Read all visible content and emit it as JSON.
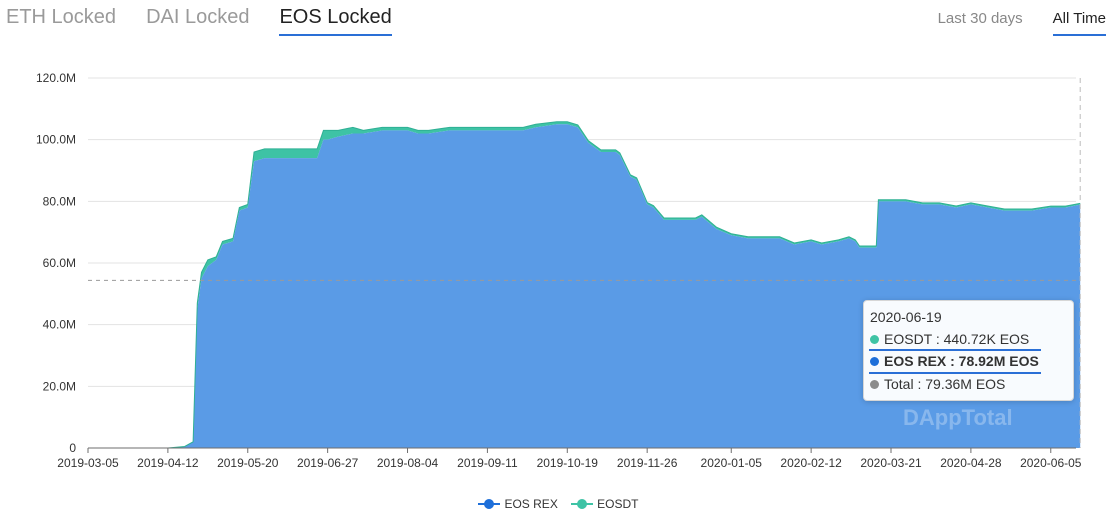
{
  "tabs": [
    {
      "label": "ETH Locked",
      "active": false
    },
    {
      "label": "DAI Locked",
      "active": false
    },
    {
      "label": "EOS Locked",
      "active": true
    }
  ],
  "ranges": [
    {
      "label": "Last 30 days",
      "active": false
    },
    {
      "label": "All Time",
      "active": true
    }
  ],
  "colors": {
    "eos_rex": "#5a9be6",
    "eosdt": "#3ec3a5",
    "total": "#8c8c8c",
    "accent": "#2a6fd6",
    "dot_rex": "#1e6fd9"
  },
  "tooltip": {
    "date": "2020-06-19",
    "eosdt": "EOSDT : 440.72K EOS",
    "eos_rex": "EOS REX : 78.92M EOS",
    "total": "Total : 79.36M EOS"
  },
  "watermark": "DAppTotal",
  "chart_data": {
    "type": "area",
    "stacked": true,
    "ylim": [
      0,
      120
    ],
    "yticks": [
      0,
      20,
      40,
      60,
      80,
      100,
      120
    ],
    "ytick_labels": [
      "0",
      "20.0M",
      "40.0M",
      "60.0M",
      "80.0M",
      "100.0M",
      "120.0M"
    ],
    "x_tick_labels": [
      "2019-03-05",
      "2019-04-12",
      "2019-05-20",
      "2019-06-27",
      "2019-08-04",
      "2019-09-11",
      "2019-10-19",
      "2019-11-26",
      "2020-01-05",
      "2020-02-12",
      "2020-03-21",
      "2020-04-28",
      "2020-06-05"
    ],
    "grid": true,
    "legend_position": "bottom-center",
    "x": [
      "2019-03-05",
      "2019-04-12",
      "2019-04-20",
      "2019-04-24",
      "2019-04-26",
      "2019-04-28",
      "2019-05-01",
      "2019-05-05",
      "2019-05-08",
      "2019-05-13",
      "2019-05-16",
      "2019-05-20",
      "2019-05-23",
      "2019-05-28",
      "2019-06-02",
      "2019-06-07",
      "2019-06-14",
      "2019-06-22",
      "2019-06-25",
      "2019-06-27",
      "2019-07-02",
      "2019-07-09",
      "2019-07-14",
      "2019-07-23",
      "2019-07-27",
      "2019-08-04",
      "2019-08-09",
      "2019-08-14",
      "2019-08-24",
      "2019-09-03",
      "2019-09-11",
      "2019-09-21",
      "2019-09-28",
      "2019-10-04",
      "2019-10-14",
      "2019-10-19",
      "2019-10-24",
      "2019-10-29",
      "2019-11-04",
      "2019-11-11",
      "2019-11-13",
      "2019-11-18",
      "2019-11-21",
      "2019-11-26",
      "2019-11-29",
      "2019-12-04",
      "2019-12-12",
      "2019-12-19",
      "2019-12-22",
      "2019-12-29",
      "2020-01-05",
      "2020-01-13",
      "2020-01-20",
      "2020-01-28",
      "2020-02-04",
      "2020-02-12",
      "2020-02-17",
      "2020-02-25",
      "2020-03-01",
      "2020-03-04",
      "2020-03-06",
      "2020-03-14",
      "2020-03-15",
      "2020-03-20",
      "2020-03-28",
      "2020-04-05",
      "2020-04-13",
      "2020-04-21",
      "2020-04-28",
      "2020-05-06",
      "2020-05-14",
      "2020-05-22",
      "2020-05-27",
      "2020-06-05",
      "2020-06-12",
      "2020-06-19"
    ],
    "series": [
      {
        "name": "EOS REX",
        "values": [
          0,
          0,
          0.5,
          2,
          45,
          55,
          59,
          61,
          66,
          67,
          77,
          78,
          93,
          94,
          94,
          94,
          94,
          94,
          100,
          100,
          101,
          102,
          102,
          103,
          103,
          103,
          102,
          102,
          103,
          103,
          103,
          103,
          103,
          104,
          105,
          105,
          104,
          99,
          96,
          96,
          95,
          88,
          87,
          79,
          78,
          74,
          74,
          74,
          75,
          71,
          69,
          68,
          68,
          68,
          66,
          67,
          66,
          67,
          68,
          67,
          65,
          65,
          80,
          80,
          80,
          79,
          79,
          78,
          79,
          78,
          77,
          77,
          77,
          78,
          78,
          78.92
        ]
      },
      {
        "name": "EOSDT",
        "values": [
          0,
          0,
          0,
          0,
          2,
          2,
          2,
          1,
          1,
          1,
          1,
          1,
          3,
          3,
          3,
          3,
          3,
          3,
          3,
          3,
          2,
          2,
          1,
          1,
          1,
          1,
          1,
          1,
          1,
          1,
          1,
          1,
          1,
          1,
          0.8,
          0.8,
          0.8,
          0.7,
          0.7,
          0.7,
          0.7,
          0.6,
          0.6,
          0.6,
          0.6,
          0.6,
          0.6,
          0.6,
          0.6,
          0.6,
          0.5,
          0.5,
          0.5,
          0.5,
          0.5,
          0.5,
          0.5,
          0.5,
          0.5,
          0.5,
          0.5,
          0.5,
          0.5,
          0.5,
          0.5,
          0.5,
          0.5,
          0.5,
          0.5,
          0.5,
          0.5,
          0.5,
          0.5,
          0.44,
          0.44,
          0.44
        ]
      }
    ],
    "marker": {
      "date": "2020-06-19",
      "total": 79.36
    }
  }
}
